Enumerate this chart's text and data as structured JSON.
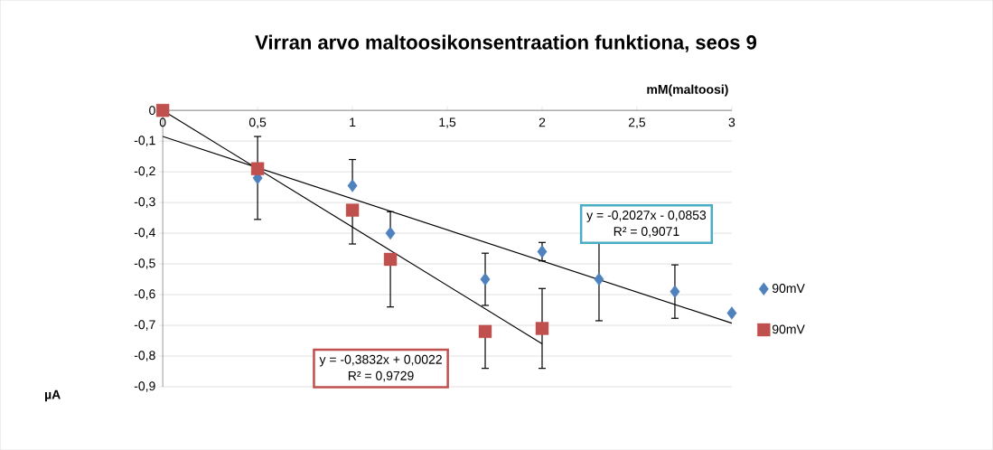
{
  "chart_data": {
    "type": "scatter",
    "title": "Virran arvo maltoosikonsentraation funktiona, seos 9",
    "xlabel": "mM(maltoosi)",
    "xlim": [
      0,
      3
    ],
    "ylim": [
      -0.9,
      0
    ],
    "xticks": [
      0,
      {
        "value": 0.5,
        "label": "0,5"
      },
      1,
      {
        "value": 1.5,
        "label": "1,5"
      },
      2,
      {
        "value": 2.5,
        "label": "2,5"
      },
      3
    ],
    "yticks": [
      {
        "value": -0.9,
        "label": "-0,9"
      },
      {
        "value": -0.8,
        "label": "-0,8"
      },
      {
        "value": -0.7,
        "label": "-0,7"
      },
      {
        "value": -0.6,
        "label": "-0,6"
      },
      {
        "value": -0.5,
        "label": "-0,5"
      },
      {
        "value": -0.4,
        "label": "-0,4"
      },
      {
        "value": -0.3,
        "label": "-0,3"
      },
      {
        "value": -0.2,
        "label": "-0,2"
      },
      {
        "value": -0.1,
        "label": "-0,1"
      },
      0
    ],
    "grid": "y",
    "legend": "right",
    "series": [
      {
        "name": "90mV",
        "marker": "diamond",
        "color": "#4f81bd",
        "x": [
          0.5,
          1,
          1.2,
          1.7,
          2,
          2.3,
          2.7,
          3
        ],
        "values": [
          -0.22,
          -0.245,
          -0.4,
          -0.55,
          -0.46,
          -0.55,
          -0.59,
          -0.66
        ],
        "errors": [
          0.135,
          [
            -0.245,
            -0.16
          ],
          [
            -0.4,
            -0.33
          ],
          [
            -0.635,
            -0.465
          ],
          0.03,
          0.135,
          0.087,
          null
        ]
      },
      {
        "name": "90mV",
        "marker": "square",
        "color": "#c0504d",
        "x": [
          0,
          0.5,
          1,
          1.2,
          1.7,
          2
        ],
        "values": [
          0,
          -0.19,
          -0.325,
          -0.485,
          -0.72,
          -0.71
        ],
        "errors": [
          null,
          null,
          [
            -0.435,
            -0.325
          ],
          [
            -0.64,
            -0.485
          ],
          [
            -0.84,
            -0.72
          ],
          0.13
        ]
      },
      {
        "type": "line",
        "line_style": "solid",
        "color": "#000000",
        "x": [
          0,
          3
        ],
        "values": [
          -0.085,
          -0.693
        ]
      },
      {
        "type": "line",
        "line_style": "solid",
        "color": "#000000",
        "x": [
          0,
          2
        ],
        "values": [
          0,
          -0.76
        ]
      }
    ],
    "annotations": [
      "y = -0,2027x - 0,0853",
      "R² = 0,9071",
      "y = -0,3832x + 0,0022",
      "R² = 0,9729",
      "µA"
    ]
  }
}
